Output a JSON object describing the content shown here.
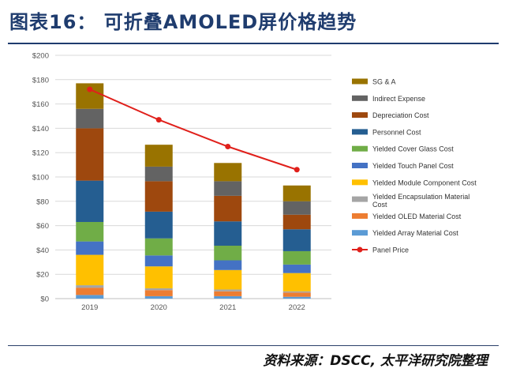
{
  "header": {
    "title": "图表16：  可折叠AMOLED屏价格趋势"
  },
  "footer": {
    "source": "资料来源：DSCC, 太平洋研究院整理",
    "watermark_text": ""
  },
  "chart_data": {
    "type": "bar",
    "stacked": true,
    "title": "",
    "xlabel": "",
    "ylabel": "",
    "ylim": [
      0,
      200
    ],
    "yticks": [
      0,
      20,
      40,
      60,
      80,
      100,
      120,
      140,
      160,
      180,
      200
    ],
    "ytick_labels": [
      "$0",
      "$20",
      "$40",
      "$60",
      "$80",
      "$100",
      "$120",
      "$140",
      "$160",
      "$180",
      "$200"
    ],
    "grid": true,
    "legend_position": "right",
    "categories": [
      "2019",
      "2020",
      "2021",
      "2022"
    ],
    "series": [
      {
        "name": "Yielded Array Material Cost",
        "color": "#5b9bd5",
        "values": [
          3,
          2,
          2,
          1.5
        ]
      },
      {
        "name": "Yielded OLED Material Cost",
        "color": "#ed7d31",
        "values": [
          6,
          5,
          4,
          3.5
        ]
      },
      {
        "name": "Yielded Encapsulation Material Cost",
        "color": "#a5a5a5",
        "values": [
          2,
          1.5,
          1.5,
          1
        ]
      },
      {
        "name": "Yielded Module Component Cost",
        "color": "#ffc000",
        "values": [
          25,
          18,
          16,
          15
        ]
      },
      {
        "name": "Yielded Touch Panel Cost",
        "color": "#4472c4",
        "values": [
          11,
          9,
          8,
          7
        ]
      },
      {
        "name": "Yielded Cover Glass Cost",
        "color": "#70ad47",
        "values": [
          16,
          14,
          12,
          11
        ]
      },
      {
        "name": "Personnel Cost",
        "color": "#255e91",
        "values": [
          34,
          22,
          20,
          18
        ]
      },
      {
        "name": "Depreciation Cost",
        "color": "#9e480e",
        "values": [
          43,
          25,
          21,
          12
        ]
      },
      {
        "name": "Indirect Expense",
        "color": "#636363",
        "values": [
          16,
          12,
          12,
          11
        ]
      },
      {
        "name": "SG & A",
        "color": "#997300",
        "values": [
          21,
          18,
          15,
          13
        ]
      }
    ],
    "legend_order": [
      "SG & A",
      "Indirect Expense",
      "Depreciation Cost",
      "Personnel Cost",
      "Yielded Cover Glass Cost",
      "Yielded Touch Panel Cost",
      "Yielded Module Component Cost",
      "Yielded Encapsulation Material Cost",
      "Yielded OLED Material Cost",
      "Yielded Array Material Cost",
      "Panel Price"
    ],
    "line_series": {
      "name": "Panel Price",
      "color": "#e0201b",
      "values": [
        172,
        147,
        125,
        106
      ]
    }
  }
}
